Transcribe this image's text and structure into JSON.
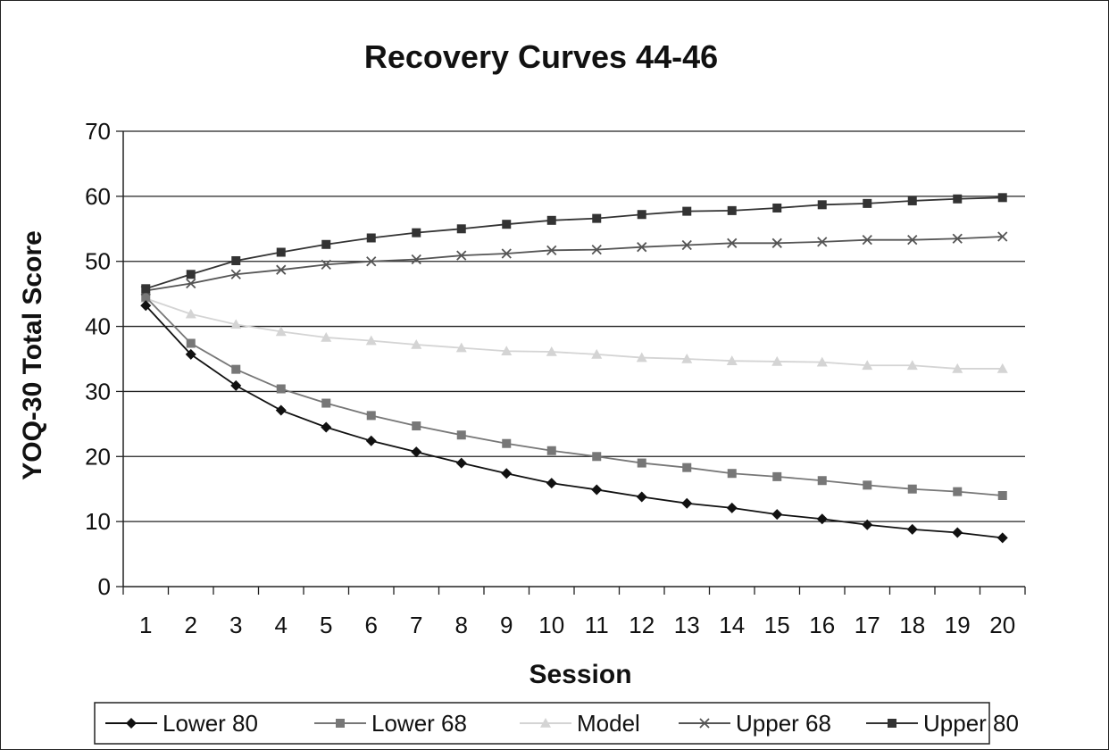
{
  "chart_data": {
    "type": "line",
    "title": "Recovery Curves 44-46",
    "xlabel": "Session",
    "ylabel": "YOQ-30 Total Score",
    "ylim": [
      0,
      70
    ],
    "yticks": [
      0,
      10,
      20,
      30,
      40,
      50,
      60,
      70
    ],
    "grid": true,
    "legend_position": "bottom",
    "categories": [
      "1",
      "2",
      "3",
      "4",
      "5",
      "6",
      "7",
      "8",
      "9",
      "10",
      "11",
      "12",
      "13",
      "14",
      "15",
      "16",
      "17",
      "18",
      "19",
      "20"
    ],
    "series": [
      {
        "name": "Lower 80",
        "color": "#111111",
        "marker": "diamond",
        "values": [
          43.2,
          35.7,
          30.9,
          27.1,
          24.5,
          22.4,
          20.7,
          19.0,
          17.4,
          15.9,
          14.9,
          13.8,
          12.8,
          12.1,
          11.1,
          10.4,
          9.5,
          8.8,
          8.3,
          7.5
        ]
      },
      {
        "name": "Lower 68",
        "color": "#777777",
        "marker": "square",
        "values": [
          44.5,
          37.4,
          33.4,
          30.4,
          28.2,
          26.3,
          24.7,
          23.3,
          22.0,
          20.9,
          20.0,
          19.0,
          18.3,
          17.4,
          16.9,
          16.3,
          15.6,
          15.0,
          14.6,
          14.0
        ]
      },
      {
        "name": "Model",
        "color": "#d4d4d4",
        "marker": "triangle",
        "values": [
          44.3,
          41.9,
          40.3,
          39.2,
          38.3,
          37.8,
          37.2,
          36.7,
          36.2,
          36.1,
          35.7,
          35.2,
          35.0,
          34.7,
          34.6,
          34.5,
          34.0,
          34.0,
          33.5,
          33.5
        ]
      },
      {
        "name": "Upper 68",
        "color": "#555555",
        "marker": "x",
        "values": [
          45.5,
          46.6,
          48.0,
          48.7,
          49.5,
          50.0,
          50.3,
          50.9,
          51.2,
          51.7,
          51.8,
          52.2,
          52.5,
          52.8,
          52.8,
          53.0,
          53.3,
          53.3,
          53.5,
          53.8
        ]
      },
      {
        "name": "Upper 80",
        "color": "#333333",
        "marker": "square",
        "values": [
          45.8,
          48.0,
          50.1,
          51.4,
          52.6,
          53.6,
          54.4,
          55.0,
          55.7,
          56.3,
          56.6,
          57.2,
          57.7,
          57.8,
          58.2,
          58.7,
          58.9,
          59.3,
          59.6,
          59.8
        ]
      }
    ]
  }
}
